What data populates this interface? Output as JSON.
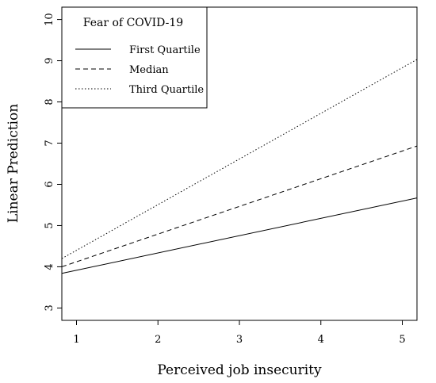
{
  "chart_data": {
    "type": "line",
    "xlabel": "Perceived job insecurity",
    "ylabel": "Linear Prediction",
    "xlim": [
      0.82,
      5.18
    ],
    "ylim": [
      2.7,
      10.3
    ],
    "x_ticks": [
      1,
      2,
      3,
      4,
      5
    ],
    "y_ticks": [
      3,
      4,
      5,
      6,
      7,
      8,
      9,
      10
    ],
    "grid": false,
    "legend": {
      "title": "Fear of COVID-19",
      "placement": "top-left",
      "entries": [
        "First Quartile",
        "Median",
        "Third Quartile"
      ]
    },
    "series": [
      {
        "name": "First Quartile",
        "style": "solid",
        "x": [
          0.82,
          5.18
        ],
        "y": [
          3.84,
          5.67
        ]
      },
      {
        "name": "Median",
        "style": "dashed",
        "x": [
          0.82,
          5.18
        ],
        "y": [
          4.0,
          6.93
        ]
      },
      {
        "name": "Third Quartile",
        "style": "dotted",
        "x": [
          0.82,
          5.18
        ],
        "y": [
          4.2,
          9.03
        ]
      }
    ]
  }
}
